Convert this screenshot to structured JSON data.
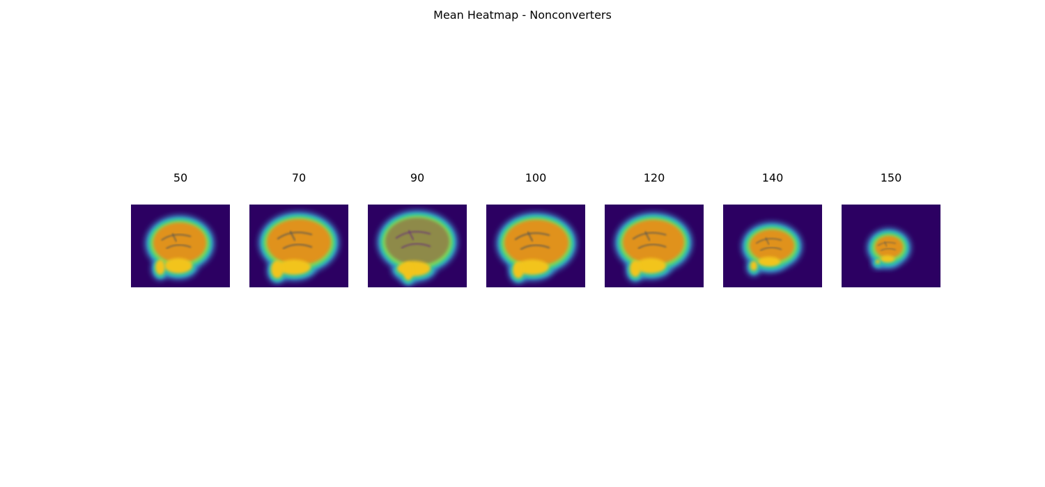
{
  "title": "Mean Heatmap - Nonconverters",
  "colors": {
    "background": "#2c0062",
    "edge_outer": "#3a8cc8",
    "edge_mid": "#2fc0a8",
    "rim": "#7ed65a",
    "fill_orange": "#e0921c",
    "fill_yellow": "#f2c41a",
    "fill_olive": "#8e8a4a",
    "dark_gray": "#5e5a50"
  },
  "chart_data": {
    "type": "heatmap",
    "title": "Mean Heatmap - Nonconverters",
    "view": "sagittal",
    "slices": [
      {
        "label": "50",
        "value": 50
      },
      {
        "label": "70",
        "value": 70
      },
      {
        "label": "90",
        "value": 90
      },
      {
        "label": "100",
        "value": 100
      },
      {
        "label": "120",
        "value": 120
      },
      {
        "label": "140",
        "value": 140
      },
      {
        "label": "150",
        "value": 150
      }
    ],
    "axes": "off",
    "colorbar": false
  }
}
